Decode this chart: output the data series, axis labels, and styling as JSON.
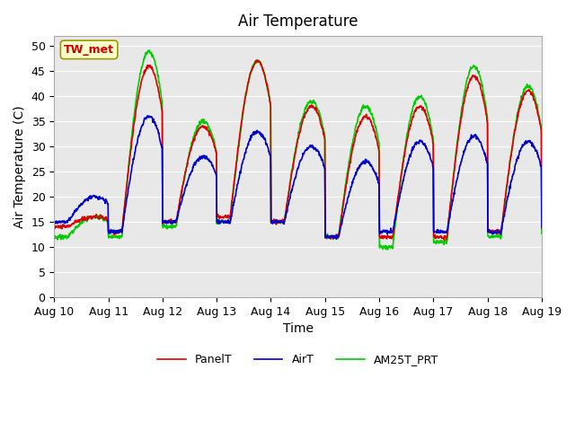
{
  "title": "Air Temperature",
  "ylabel": "Air Temperature (C)",
  "xlabel": "Time",
  "annotation_text": "TW_met",
  "annotation_color": "#cc0000",
  "annotation_bg": "#ffffcc",
  "annotation_border": "#999900",
  "ylim": [
    0,
    52
  ],
  "yticks": [
    0,
    5,
    10,
    15,
    20,
    25,
    30,
    35,
    40,
    45,
    50
  ],
  "x_labels": [
    "Aug 10",
    "Aug 11",
    "Aug 12",
    "Aug 13",
    "Aug 14",
    "Aug 15",
    "Aug 16",
    "Aug 17",
    "Aug 18",
    "Aug 19"
  ],
  "plot_bg": "#e8e8e8",
  "fig_bg": "#ffffff",
  "grid_color": "#ffffff",
  "line_colors": {
    "PanelT": "#dd0000",
    "AirT": "#0000cc",
    "AM25T_PRT": "#00cc00"
  },
  "lw": 1.2,
  "title_fontsize": 12,
  "label_fontsize": 10,
  "tick_fontsize": 9,
  "days": 9,
  "points_per_day": 144,
  "panel_mins": [
    14,
    13,
    15,
    16,
    15,
    12,
    12,
    12,
    13,
    14
  ],
  "panel_maxs": [
    16,
    46,
    34,
    47,
    38,
    36,
    38,
    44,
    41,
    40
  ],
  "air_mins": [
    15,
    13,
    15,
    15,
    15,
    12,
    13,
    13,
    13,
    14
  ],
  "air_maxs": [
    20,
    36,
    28,
    33,
    30,
    27,
    31,
    32,
    31,
    31
  ],
  "am25_mins": [
    12,
    12,
    14,
    15,
    15,
    12,
    10,
    11,
    12,
    13
  ],
  "am25_maxs": [
    16,
    49,
    35,
    47,
    39,
    38,
    40,
    46,
    42,
    42
  ]
}
